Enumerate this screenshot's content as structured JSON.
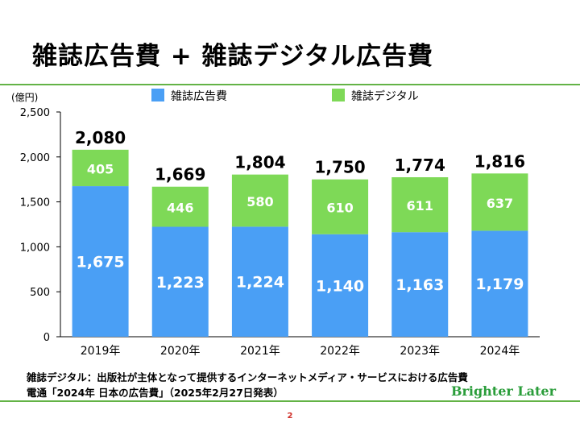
{
  "page": {
    "title": "雑誌広告費 + 雑誌デジタル広告費",
    "footnote_1": "雑誌デジタル：出版社が主体となって提供するインターネットメディア・サービスにおける広告費",
    "footnote_2": "電通「2024年 日本の広告費」（2025年2月27日発表）",
    "brand": "Brighter Later",
    "page_number": "2"
  },
  "colors": {
    "magazine": "#4a9ff5",
    "digital": "#7ed957",
    "accent_line": "#63b346",
    "brand": "#2a9d3a",
    "page_number": "#d0302a"
  },
  "chart_data": {
    "type": "bar",
    "stacked": true,
    "categories": [
      "2019年",
      "2020年",
      "2021年",
      "2022年",
      "2023年",
      "2024年"
    ],
    "series": [
      {
        "name": "雑誌広告費",
        "values": [
          1675,
          1223,
          1224,
          1140,
          1163,
          1179
        ],
        "labels": [
          "1,675",
          "1,223",
          "1,224",
          "1,140",
          "1,163",
          "1,179"
        ],
        "color": "#4a9ff5"
      },
      {
        "name": "雑誌デジタル",
        "values": [
          405,
          446,
          580,
          610,
          611,
          637
        ],
        "labels": [
          "405",
          "446",
          "580",
          "610",
          "611",
          "637"
        ],
        "color": "#7ed957"
      }
    ],
    "totals": [
      2080,
      1669,
      1804,
      1750,
      1774,
      1816
    ],
    "total_labels": [
      "2,080",
      "1,669",
      "1,804",
      "1,750",
      "1,774",
      "1,816"
    ],
    "ylabel": "(億円)",
    "ylim": [
      0,
      2500
    ],
    "yticks": [
      0,
      500,
      1000,
      1500,
      2000,
      2500
    ],
    "ytick_labels": [
      "0",
      "500",
      "1,000",
      "1,500",
      "2,000",
      "2,500"
    ],
    "grid": false,
    "legend_position": "top"
  }
}
